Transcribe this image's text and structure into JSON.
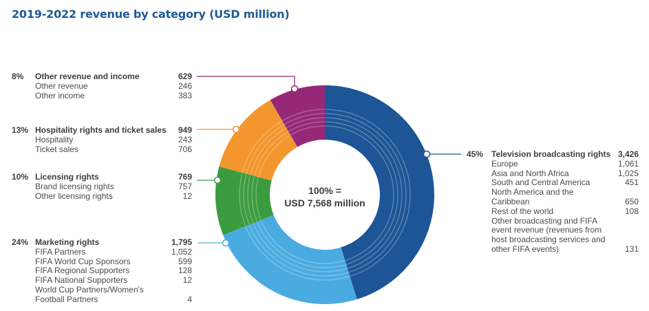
{
  "chart_data": {
    "type": "pie",
    "title": "2019-2022 revenue by category (USD million)",
    "center_line1": "100% =",
    "center_line2": "USD 7,568 million",
    "total": 7568,
    "slices": [
      {
        "name": "Television broadcasting rights",
        "pct": "45%",
        "value": 3426,
        "value_label": "3,426",
        "color": "#1d5597",
        "items": [
          {
            "label": "Europe",
            "value": "1,061"
          },
          {
            "label": "Asia and North Africa",
            "value": "1,025"
          },
          {
            "label": "South and Central America",
            "value": "451"
          },
          {
            "label": "North America and the Caribbean",
            "value": "650",
            "lines": [
              "North America and the",
              "Caribbean"
            ]
          },
          {
            "label": "Rest of the world",
            "value": "108"
          },
          {
            "label": "Other broadcasting and FIFA event revenue (revenues from host broadcasting services and other FIFA events)",
            "value": "131",
            "lines": [
              "Other broadcasting and FIFA",
              "event revenue (revenues from",
              "host broadcasting services and",
              "other FIFA events)"
            ]
          }
        ]
      },
      {
        "name": "Marketing rights",
        "pct": "24%",
        "value": 1795,
        "value_label": "1,795",
        "color": "#4aabe0",
        "items": [
          {
            "label": "FIFA Partners",
            "value": "1,052"
          },
          {
            "label": "FIFA World Cup Sponsors",
            "value": "599"
          },
          {
            "label": "FIFA Regional Supporters",
            "value": "128"
          },
          {
            "label": "FIFA National Supporters",
            "value": "12"
          },
          {
            "label": "World Cup Partners/Women's Football Partners",
            "value": "4",
            "lines": [
              "World Cup Partners/Women's",
              "Football Partners"
            ]
          }
        ]
      },
      {
        "name": "Licensing rights",
        "pct": "10%",
        "value": 769,
        "value_label": "769",
        "color": "#3b9c3f",
        "items": [
          {
            "label": "Brand licensing rights",
            "value": "757"
          },
          {
            "label": "Other licensing rights",
            "value": "12"
          }
        ]
      },
      {
        "name": "Hospitality rights and ticket sales",
        "pct": "13%",
        "value": 949,
        "value_label": "949",
        "color": "#f3962d",
        "items": [
          {
            "label": "Hospitality",
            "value": "243"
          },
          {
            "label": "Ticket sales",
            "value": "706"
          }
        ]
      },
      {
        "name": "Other revenue and income",
        "pct": "8%",
        "value": 629,
        "value_label": "629",
        "color": "#962877",
        "items": [
          {
            "label": "Other revenue",
            "value": "246"
          },
          {
            "label": "Other income",
            "value": "383"
          }
        ]
      }
    ]
  }
}
